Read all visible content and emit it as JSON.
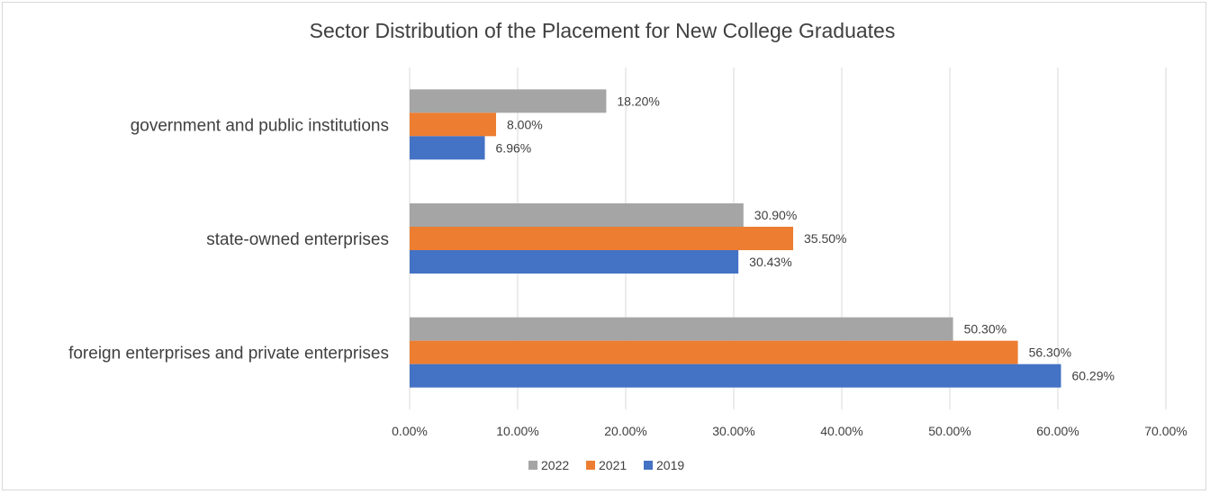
{
  "chart_data": {
    "type": "bar",
    "orientation": "horizontal",
    "title": "Sector Distribution of the Placement for New College Graduates",
    "categories": [
      "government and public institutions",
      "state-owned enterprises",
      "foreign enterprises and private enterprises"
    ],
    "series": [
      {
        "name": "2022",
        "color": "#a5a5a5",
        "values": [
          18.2,
          30.9,
          50.3
        ],
        "labels": [
          "18.20%",
          "30.90%",
          "50.30%"
        ]
      },
      {
        "name": "2021",
        "color": "#ed7d31",
        "values": [
          8.0,
          35.5,
          56.3
        ],
        "labels": [
          "8.00%",
          "35.50%",
          "56.30%"
        ]
      },
      {
        "name": "2019",
        "color": "#4472c4",
        "values": [
          6.96,
          30.43,
          60.29
        ],
        "labels": [
          "6.96%",
          "30.43%",
          "60.29%"
        ]
      }
    ],
    "xlim": [
      0,
      70
    ],
    "ticks": [
      0,
      10,
      20,
      30,
      40,
      50,
      60,
      70
    ],
    "tick_labels": [
      "0.00%",
      "10.00%",
      "20.00%",
      "30.00%",
      "40.00%",
      "50.00%",
      "60.00%",
      "70.00%"
    ],
    "grid": true,
    "legend_position": "bottom",
    "legend_order": [
      "2022",
      "2021",
      "2019"
    ]
  }
}
